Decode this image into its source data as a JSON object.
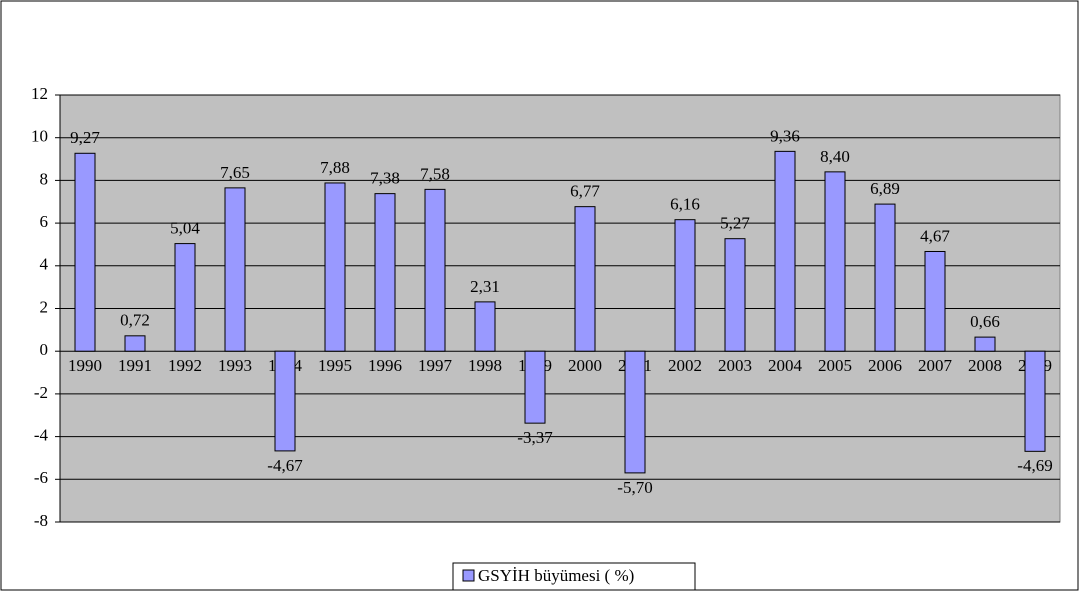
{
  "chart_data": {
    "type": "bar",
    "categories": [
      "1990",
      "1991",
      "1992",
      "1993",
      "1994",
      "1995",
      "1996",
      "1997",
      "1998",
      "1999",
      "2000",
      "2001",
      "2002",
      "2003",
      "2004",
      "2005",
      "2006",
      "2007",
      "2008",
      "2009"
    ],
    "series": [
      {
        "name": "GSYİH büyümesi ( %)",
        "color": "#9999ff",
        "values": [
          9.27,
          0.72,
          5.04,
          7.65,
          -4.67,
          7.88,
          7.38,
          7.58,
          2.31,
          -3.37,
          6.77,
          -5.7,
          6.16,
          5.27,
          9.36,
          8.4,
          6.89,
          4.67,
          0.66,
          -4.69
        ],
        "value_labels": [
          "9,27",
          "0,72",
          "5,04",
          "7,65",
          "-4,67",
          "7,88",
          "7,38",
          "7,58",
          "2,31",
          "-3,37",
          "6,77",
          "-5,70",
          "6,16",
          "5,27",
          "9,36",
          "8,40",
          "6,89",
          "4,67",
          "0,66",
          "-4,69"
        ]
      }
    ],
    "ylim": [
      -8,
      12
    ],
    "yticks": [
      -8,
      -6,
      -4,
      -2,
      0,
      2,
      4,
      6,
      8,
      10,
      12
    ],
    "grid": true,
    "legend": "bottom"
  }
}
